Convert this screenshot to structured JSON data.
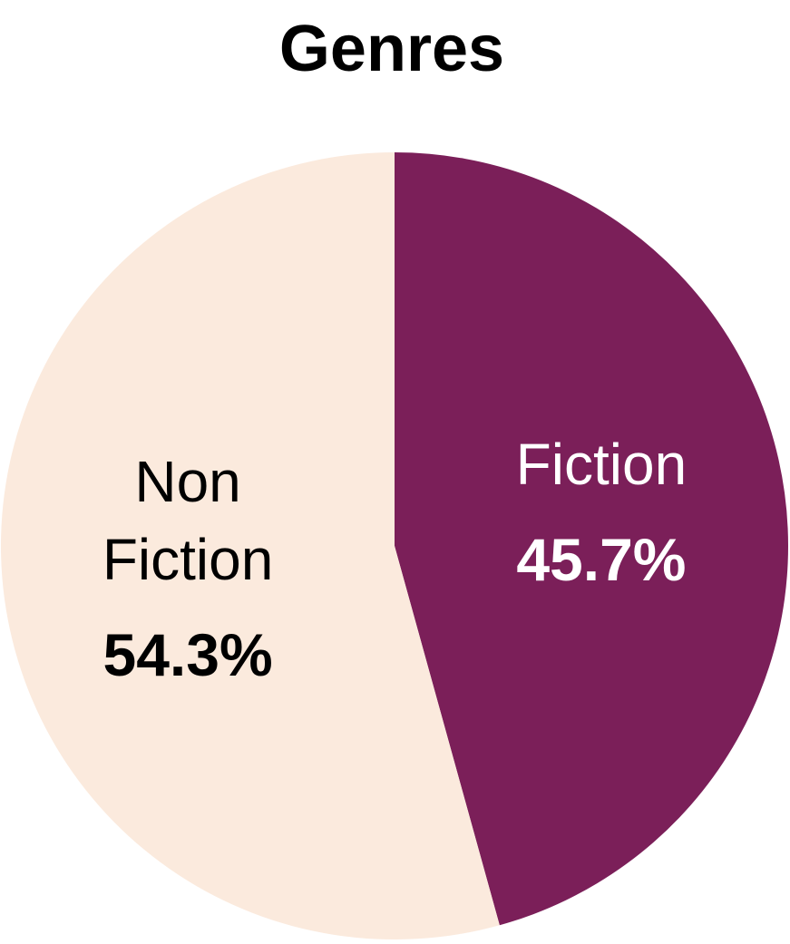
{
  "chart_data": {
    "type": "pie",
    "title": "Genres",
    "slices": [
      {
        "label": "Fiction",
        "label_lines": [
          "Fiction"
        ],
        "value": 45.7,
        "value_label": "45.7%",
        "color": "#7b1f59",
        "text_color": "#ffffff"
      },
      {
        "label": "Non Fiction",
        "label_lines": [
          "Non",
          "Fiction"
        ],
        "value": 54.3,
        "value_label": "54.3%",
        "color": "#fbeadd",
        "text_color": "#000000"
      }
    ],
    "start_angle_deg": 0,
    "direction": "clockwise",
    "legend": "none"
  }
}
